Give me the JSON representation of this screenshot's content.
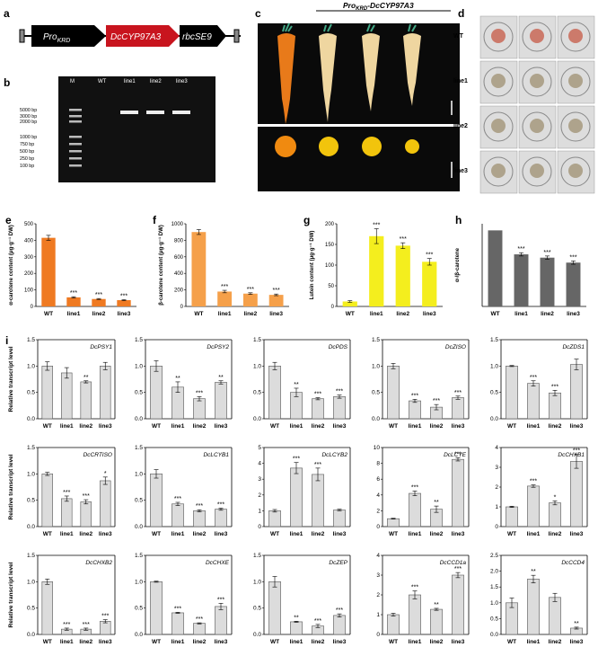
{
  "panel_labels": {
    "a": "a",
    "b": "b",
    "c": "c",
    "d": "d",
    "e": "e",
    "f": "f",
    "g": "g",
    "h": "h",
    "i": "i"
  },
  "construct": {
    "pro": "Pro",
    "pro_sub": "KRD",
    "gene": "DcCYP97A3",
    "term": "rbcSE9"
  },
  "gel": {
    "lanes": [
      "M",
      "WT",
      "line1",
      "line2",
      "line3"
    ],
    "ladder": [
      "5000 bp",
      "3000 bp",
      "2000 bp",
      "1000 bp",
      "750 bp",
      "500 bp",
      "250 bp",
      "100 bp"
    ]
  },
  "carrot": {
    "header_pro": "Pro",
    "header_sub": "KRD",
    "header_gene": "-DcCYP97A3",
    "columns": [
      "WT",
      "line1",
      "line2",
      "line3"
    ]
  },
  "cells": {
    "rows": [
      "WT",
      "line1",
      "line2",
      "line3"
    ]
  },
  "colors": {
    "orange": "#ef7a22",
    "light_orange": "#f5a04a",
    "yellow": "#f4ee1e",
    "dark_gray": "#666666",
    "bar_gray": "#dcdcdc"
  },
  "chart_data": [
    {
      "id": "e",
      "type": "bar",
      "ylabel": "α-carotene content (μg·g⁻¹ DW)",
      "categories": [
        "WT",
        "line1",
        "line2",
        "line3"
      ],
      "values": [
        415,
        55,
        45,
        38
      ],
      "err": [
        15,
        4,
        3,
        3
      ],
      "sig": [
        "",
        "***",
        "***",
        "***"
      ],
      "ylim": [
        0,
        500
      ],
      "ticks": [
        0,
        100,
        200,
        300,
        400,
        500
      ],
      "color": "#ef7a22"
    },
    {
      "id": "f",
      "type": "bar",
      "ylabel": "β-carotene content (μg·g⁻¹ DW)",
      "categories": [
        "WT",
        "line1",
        "line2",
        "line3"
      ],
      "values": [
        900,
        180,
        155,
        140
      ],
      "err": [
        30,
        15,
        10,
        10
      ],
      "sig": [
        "",
        "***",
        "***",
        "***"
      ],
      "ylim": [
        0,
        1000
      ],
      "ticks": [
        0,
        200,
        400,
        600,
        800,
        1000
      ],
      "color": "#f5a04a"
    },
    {
      "id": "g",
      "type": "bar",
      "ylabel": "Lutein content (μg·g⁻¹ DW)",
      "categories": [
        "WT",
        "line1",
        "line2",
        "line3"
      ],
      "values": [
        12,
        170,
        147,
        108
      ],
      "err": [
        2,
        18,
        7,
        8
      ],
      "sig": [
        "",
        "***",
        "***",
        "***"
      ],
      "ylim": [
        0,
        200
      ],
      "ticks": [
        0,
        50,
        100,
        150,
        200
      ],
      "color": "#f4ee1e"
    },
    {
      "id": "h",
      "type": "bar",
      "ylabel": "α-/β-carotene",
      "categories": [
        "WT",
        "line1",
        "line2",
        "line3"
      ],
      "values": [
        0.46,
        0.315,
        0.295,
        0.265
      ],
      "err": [
        0.0,
        0.01,
        0.01,
        0.01
      ],
      "sig": [
        "",
        "***",
        "***",
        "***"
      ],
      "ylim": [
        0,
        0.5
      ],
      "ticks": [],
      "color": "#666666"
    },
    {
      "id": "DcPSY1",
      "type": "bar",
      "gene": "DcPSY1",
      "categories": [
        "WT",
        "line1",
        "line2",
        "line3"
      ],
      "values": [
        1.0,
        0.87,
        0.7,
        1.0
      ],
      "err": [
        0.08,
        0.1,
        0.02,
        0.07
      ],
      "sig": [
        "",
        "",
        "**",
        ""
      ],
      "ylim": [
        0,
        1.5
      ],
      "ticks": [
        0,
        0.5,
        1.0,
        1.5
      ],
      "color": "#dcdcdc"
    },
    {
      "id": "DcPSY2",
      "type": "bar",
      "gene": "DcPSY2",
      "categories": [
        "WT",
        "line1",
        "line2",
        "line3"
      ],
      "values": [
        1.0,
        0.6,
        0.38,
        0.69
      ],
      "err": [
        0.1,
        0.1,
        0.04,
        0.03
      ],
      "sig": [
        "",
        "**",
        "***",
        "**"
      ],
      "ylim": [
        0,
        1.5
      ],
      "ticks": [
        0,
        0.5,
        1.0,
        1.5
      ],
      "color": "#dcdcdc"
    },
    {
      "id": "DcPDS",
      "type": "bar",
      "gene": "DcPDS",
      "categories": [
        "WT",
        "line1",
        "line2",
        "line3"
      ],
      "values": [
        1.0,
        0.5,
        0.38,
        0.42
      ],
      "err": [
        0.07,
        0.08,
        0.02,
        0.03
      ],
      "sig": [
        "",
        "**",
        "***",
        "***"
      ],
      "ylim": [
        0,
        1.5
      ],
      "ticks": [
        0,
        0.5,
        1.0,
        1.5
      ],
      "color": "#dcdcdc"
    },
    {
      "id": "DcZISO",
      "type": "bar",
      "gene": "DcZISO",
      "categories": [
        "WT",
        "line1",
        "line2",
        "line3"
      ],
      "values": [
        1.0,
        0.34,
        0.22,
        0.4
      ],
      "err": [
        0.05,
        0.03,
        0.05,
        0.03
      ],
      "sig": [
        "",
        "***",
        "***",
        "***"
      ],
      "ylim": [
        0,
        1.5
      ],
      "ticks": [
        0,
        0.5,
        1.0,
        1.5
      ],
      "color": "#dcdcdc"
    },
    {
      "id": "DcZDS1",
      "type": "bar",
      "gene": "DcZDS1",
      "categories": [
        "WT",
        "line1",
        "line2",
        "line3"
      ],
      "values": [
        1.0,
        0.67,
        0.49,
        1.03
      ],
      "err": [
        0.01,
        0.05,
        0.05,
        0.1
      ],
      "sig": [
        "",
        "***",
        "***",
        ""
      ],
      "ylim": [
        0,
        1.5
      ],
      "ticks": [
        0,
        0.5,
        1.0,
        1.5
      ],
      "color": "#dcdcdc"
    },
    {
      "id": "DcCRTISO",
      "type": "bar",
      "gene": "DcCRTISO",
      "categories": [
        "WT",
        "line1",
        "line2",
        "line3"
      ],
      "values": [
        1.0,
        0.53,
        0.47,
        0.87
      ],
      "err": [
        0.03,
        0.05,
        0.04,
        0.07
      ],
      "sig": [
        "",
        "***",
        "***",
        "*"
      ],
      "ylim": [
        0,
        1.5
      ],
      "ticks": [
        0,
        0.5,
        1.0,
        1.5
      ],
      "color": "#dcdcdc"
    },
    {
      "id": "DcLCYB1",
      "type": "bar",
      "gene": "DcLCYB1",
      "categories": [
        "WT",
        "line1",
        "line2",
        "line3"
      ],
      "values": [
        1.0,
        0.43,
        0.3,
        0.33
      ],
      "err": [
        0.08,
        0.03,
        0.02,
        0.02
      ],
      "sig": [
        "",
        "***",
        "***",
        "***"
      ],
      "ylim": [
        0,
        1.5
      ],
      "ticks": [
        0,
        0.5,
        1.0,
        1.5
      ],
      "color": "#dcdcdc"
    },
    {
      "id": "DcLCYB2",
      "type": "bar",
      "gene": "DcLCYB2",
      "categories": [
        "WT",
        "line1",
        "line2",
        "line3"
      ],
      "values": [
        1.0,
        3.7,
        3.3,
        1.05
      ],
      "err": [
        0.08,
        0.35,
        0.4,
        0.05
      ],
      "sig": [
        "",
        "***",
        "***",
        ""
      ],
      "ylim": [
        0,
        5
      ],
      "ticks": [
        0,
        1,
        2,
        3,
        4,
        5
      ],
      "color": "#dcdcdc"
    },
    {
      "id": "DcLCYE",
      "type": "bar",
      "gene": "DcLCYE",
      "categories": [
        "WT",
        "line1",
        "line2",
        "line3"
      ],
      "values": [
        1.0,
        4.2,
        2.2,
        8.5
      ],
      "err": [
        0.05,
        0.3,
        0.4,
        0.2
      ],
      "sig": [
        "",
        "***",
        "**",
        "***"
      ],
      "ylim": [
        0,
        10
      ],
      "ticks": [
        0,
        2,
        4,
        6,
        8,
        10
      ],
      "color": "#dcdcdc"
    },
    {
      "id": "DcCHXB1",
      "type": "bar",
      "gene": "DcCHXB1",
      "categories": [
        "WT",
        "line1",
        "line2",
        "line3"
      ],
      "values": [
        1.0,
        2.05,
        1.2,
        3.3
      ],
      "err": [
        0.03,
        0.06,
        0.1,
        0.35
      ],
      "sig": [
        "",
        "***",
        "*",
        "***"
      ],
      "ylim": [
        0,
        4
      ],
      "ticks": [
        0,
        1,
        2,
        3,
        4
      ],
      "color": "#dcdcdc"
    },
    {
      "id": "DcCHXB2",
      "type": "bar",
      "gene": "DcCHXB2",
      "categories": [
        "WT",
        "line1",
        "line2",
        "line3"
      ],
      "values": [
        1.0,
        0.1,
        0.1,
        0.25
      ],
      "err": [
        0.05,
        0.02,
        0.02,
        0.03
      ],
      "sig": [
        "",
        "***",
        "***",
        "***"
      ],
      "ylim": [
        0,
        1.5
      ],
      "ticks": [
        0,
        0.5,
        1.0,
        1.5
      ],
      "color": "#dcdcdc"
    },
    {
      "id": "DcCHXE",
      "type": "bar",
      "gene": "DcCHXE",
      "categories": [
        "WT",
        "line1",
        "line2",
        "line3"
      ],
      "values": [
        1.0,
        0.41,
        0.21,
        0.53
      ],
      "err": [
        0.01,
        0.01,
        0.01,
        0.06
      ],
      "sig": [
        "",
        "***",
        "***",
        "***"
      ],
      "ylim": [
        0,
        1.5
      ],
      "ticks": [
        0,
        0.5,
        1.0,
        1.5
      ],
      "color": "#dcdcdc"
    },
    {
      "id": "DcZEP",
      "type": "bar",
      "gene": "DcZEP",
      "categories": [
        "WT",
        "line1",
        "line2",
        "line3"
      ],
      "values": [
        1.0,
        0.24,
        0.16,
        0.36
      ],
      "err": [
        0.1,
        0.01,
        0.03,
        0.03
      ],
      "sig": [
        "",
        "**",
        "***",
        "***"
      ],
      "ylim": [
        0,
        1.5
      ],
      "ticks": [
        0,
        0.5,
        1.0,
        1.5
      ],
      "color": "#dcdcdc"
    },
    {
      "id": "DcCCD1a",
      "type": "bar",
      "gene": "DcCCD1a",
      "categories": [
        "WT",
        "line1",
        "line2",
        "line3"
      ],
      "values": [
        1.0,
        2.0,
        1.27,
        3.0
      ],
      "err": [
        0.07,
        0.2,
        0.05,
        0.13
      ],
      "sig": [
        "",
        "***",
        "**",
        "***"
      ],
      "ylim": [
        0,
        4
      ],
      "ticks": [
        0,
        1,
        2,
        3,
        4
      ],
      "color": "#dcdcdc"
    },
    {
      "id": "DcCCD4",
      "type": "bar",
      "gene": "DcCCD4",
      "categories": [
        "WT",
        "line1",
        "line2",
        "line3"
      ],
      "values": [
        1.0,
        1.75,
        1.17,
        0.2
      ],
      "err": [
        0.15,
        0.12,
        0.13,
        0.03
      ],
      "sig": [
        "",
        "**",
        "",
        "**"
      ],
      "ylim": [
        0,
        2.5
      ],
      "ticks": [
        0,
        0.5,
        1.0,
        1.5,
        2.0,
        2.5
      ],
      "color": "#dcdcdc"
    }
  ],
  "i_ylabel": "Relative transcript level"
}
